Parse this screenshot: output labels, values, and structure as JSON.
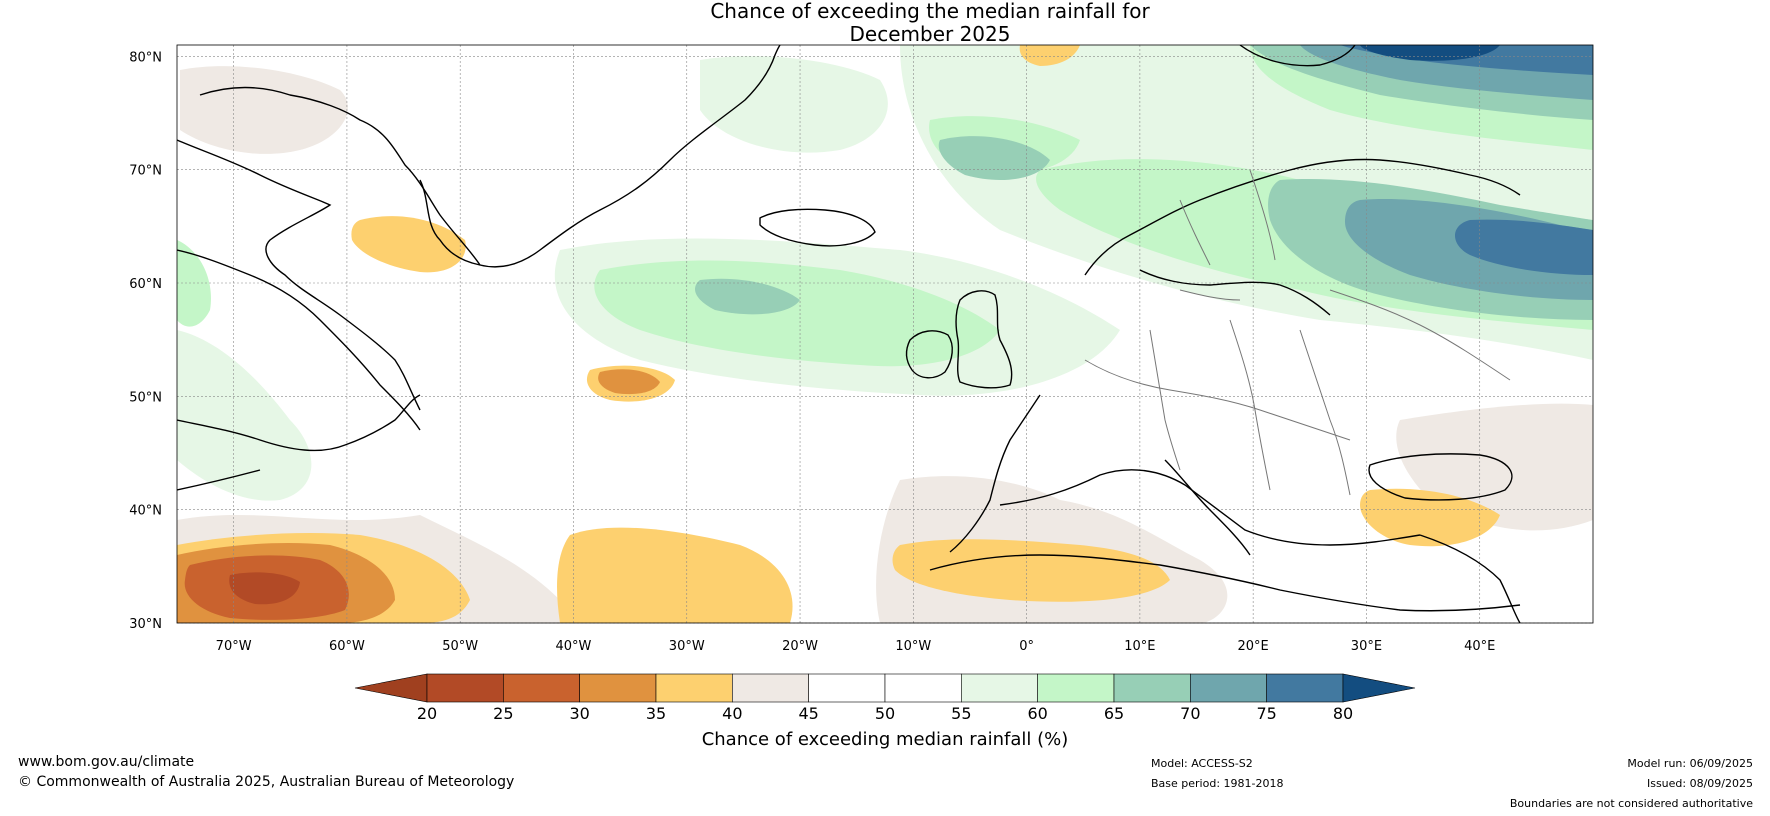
{
  "title": {
    "line1": "Chance of exceeding the median rainfall for",
    "line2": "December 2025"
  },
  "map": {
    "lat_labels": [
      "80°N",
      "70°N",
      "60°N",
      "50°N",
      "40°N",
      "30°N"
    ],
    "lon_labels": [
      "70°W",
      "60°W",
      "50°W",
      "40°W",
      "30°W",
      "20°W",
      "10°W",
      "0°",
      "10°E",
      "20°E",
      "30°E",
      "40°E"
    ],
    "extent": {
      "lon_min": -75,
      "lon_max": 50,
      "lat_min": 30,
      "lat_max": 81
    }
  },
  "colorbar": {
    "title": "Chance of exceeding median rainfall (%)",
    "ticks": [
      "20",
      "25",
      "30",
      "35",
      "40",
      "45",
      "50",
      "55",
      "60",
      "65",
      "70",
      "75",
      "80"
    ],
    "colors": [
      "#a0401f",
      "#b24a26",
      "#c9622e",
      "#e0923f",
      "#fdd06f",
      "#efe9e4",
      "#ffffff",
      "#ffffff",
      "#e6f7e6",
      "#c4f6c8",
      "#97cfb6",
      "#6fa6ad",
      "#4279a0",
      "#134d80"
    ]
  },
  "footer": {
    "website": "www.bom.gov.au/climate",
    "copyright": "© Commonwealth of Australia 2025, Australian Bureau of Meteorology",
    "model": "Model: ACCESS-S2",
    "base_period": "Base period: 1981-2018",
    "model_run": "Model run: 06/09/2025",
    "issued": "Issued: 08/09/2025",
    "disclaimer": "Boundaries are not considered authoritative"
  }
}
